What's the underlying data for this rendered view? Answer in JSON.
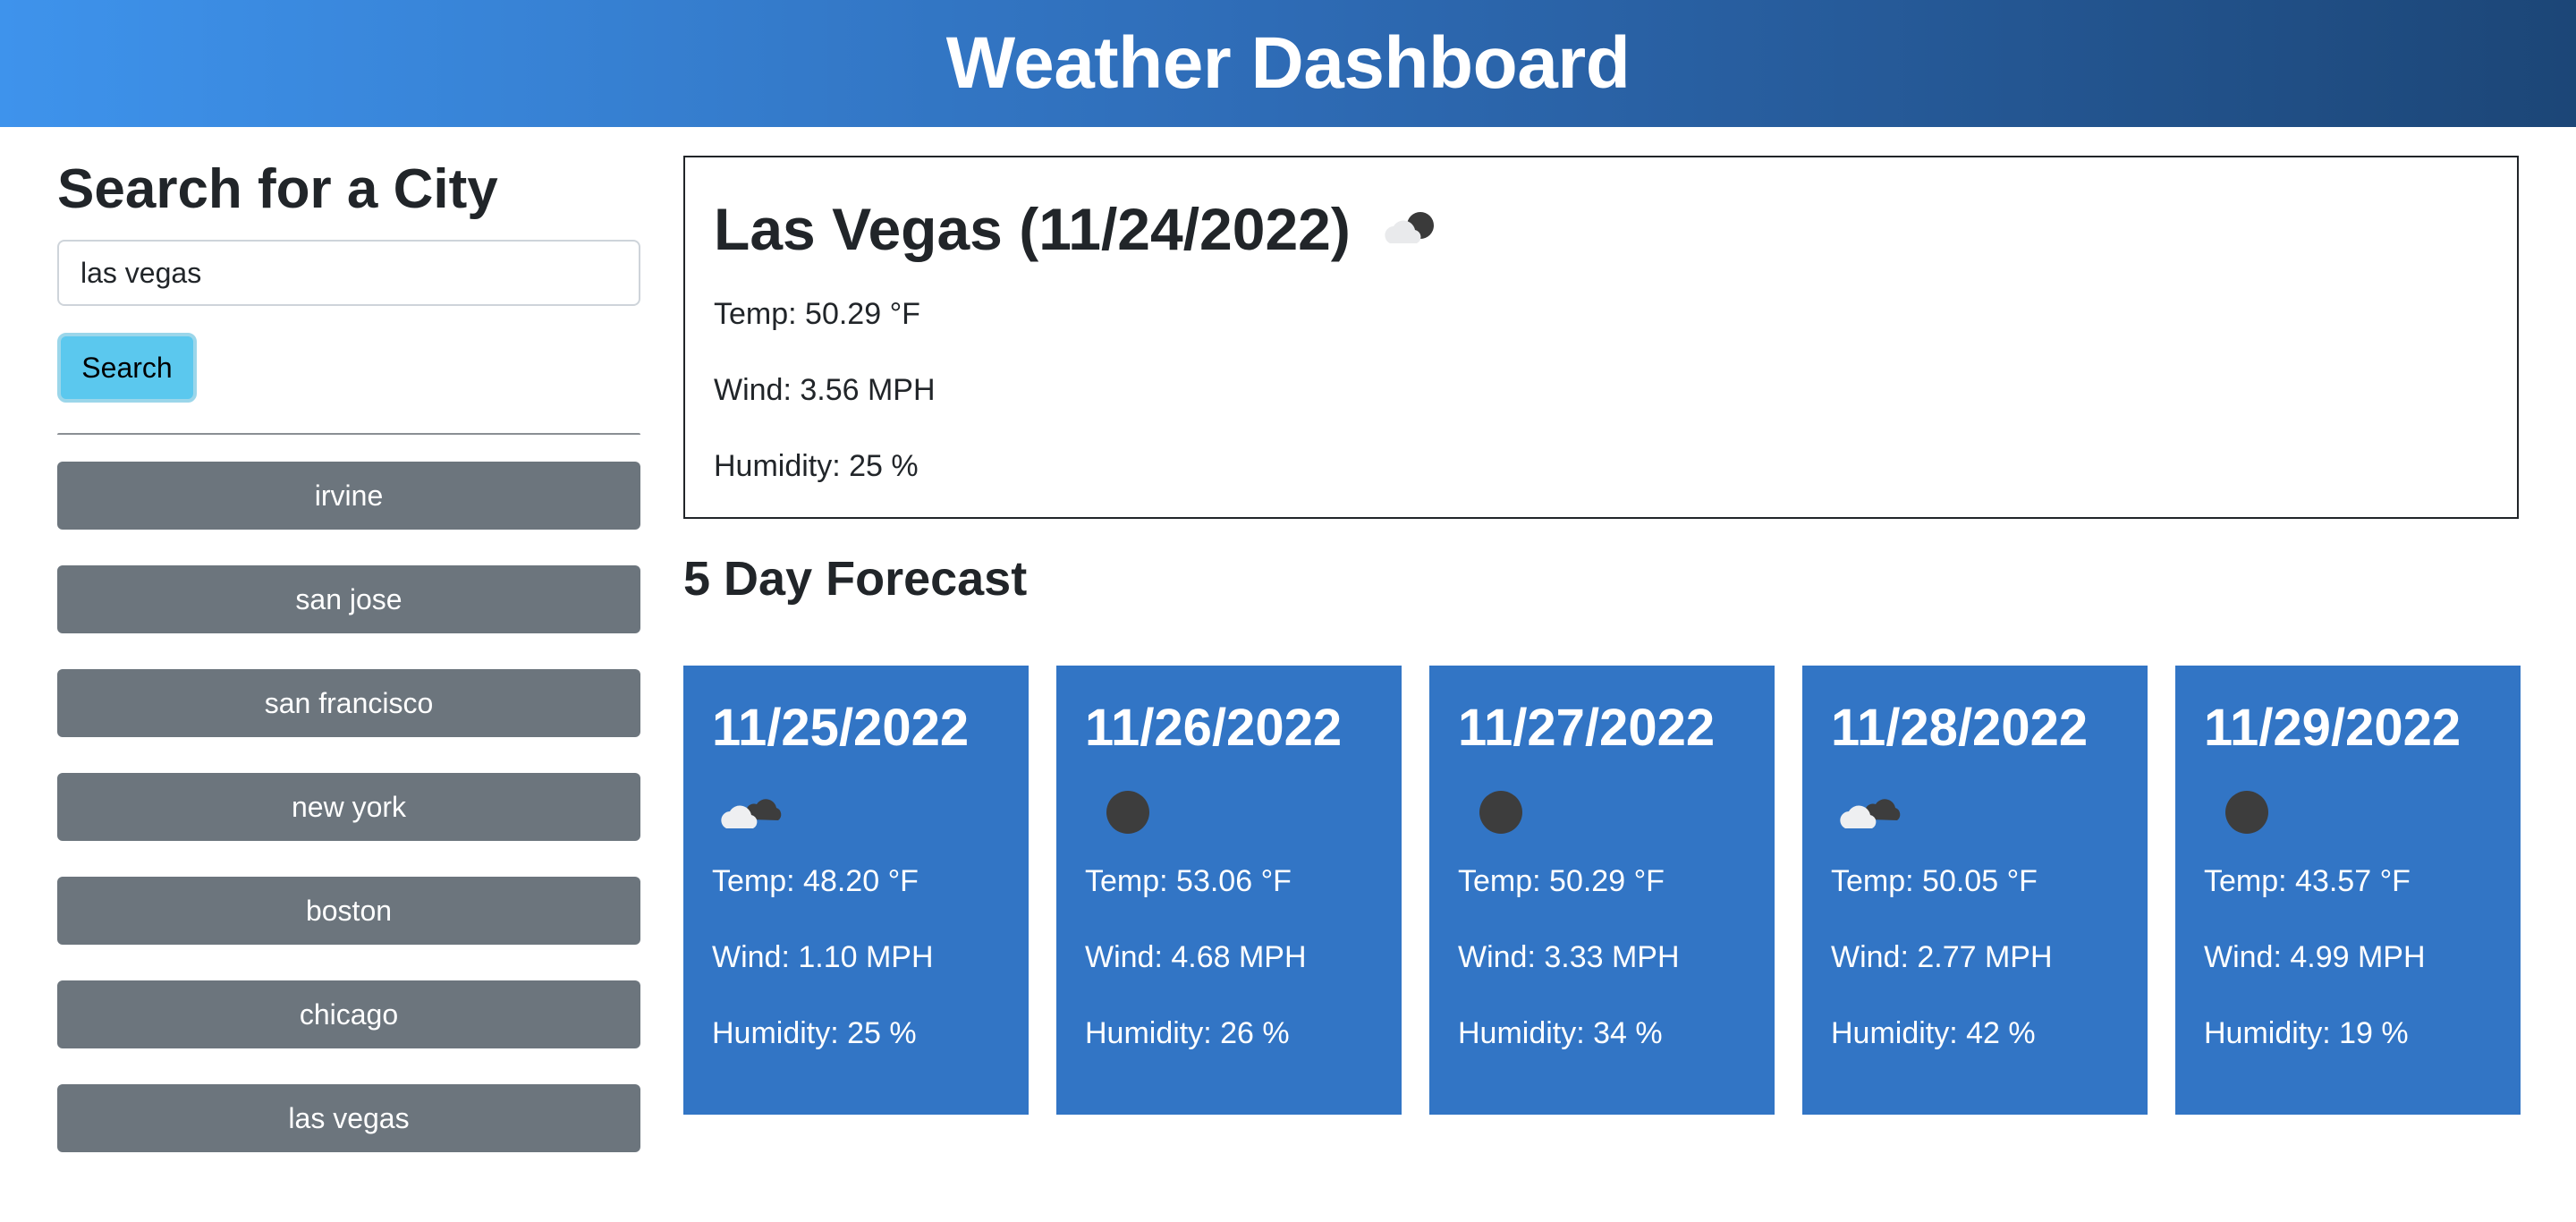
{
  "header": {
    "title": "Weather Dashboard"
  },
  "sidebar": {
    "title": "Search for a City",
    "search_value": "las vegas",
    "search_button": "Search",
    "history": [
      "irvine",
      "san jose",
      "san francisco",
      "new york",
      "boston",
      "chicago",
      "las vegas"
    ]
  },
  "current": {
    "title": "Las Vegas (11/24/2022)",
    "icon": "partly-cloudy-night-icon",
    "temp": "Temp: 50.29 °F",
    "wind": "Wind: 3.56 MPH",
    "humidity": "Humidity: 25 %"
  },
  "forecast": {
    "title": "5 Day Forecast",
    "days": [
      {
        "date": "11/25/2022",
        "icon": "broken-clouds-icon",
        "temp": "Temp: 48.20 °F",
        "wind": "Wind: 1.10 MPH",
        "humidity": "Humidity: 25 %"
      },
      {
        "date": "11/26/2022",
        "icon": "clear-night-icon",
        "temp": "Temp: 53.06 °F",
        "wind": "Wind: 4.68 MPH",
        "humidity": "Humidity: 26 %"
      },
      {
        "date": "11/27/2022",
        "icon": "clear-night-icon",
        "temp": "Temp: 50.29 °F",
        "wind": "Wind: 3.33 MPH",
        "humidity": "Humidity: 34 %"
      },
      {
        "date": "11/28/2022",
        "icon": "broken-clouds-icon",
        "temp": "Temp: 50.05 °F",
        "wind": "Wind: 2.77 MPH",
        "humidity": "Humidity: 42 %"
      },
      {
        "date": "11/29/2022",
        "icon": "clear-night-icon",
        "temp": "Temp: 43.57 °F",
        "wind": "Wind: 4.99 MPH",
        "humidity": "Humidity: 19 %"
      }
    ]
  },
  "colors": {
    "header_start": "#3e93ec",
    "header_end": "#1c4677",
    "card": "#3275c5",
    "history_button": "#6c757d",
    "search_button": "#5bc8ee"
  }
}
